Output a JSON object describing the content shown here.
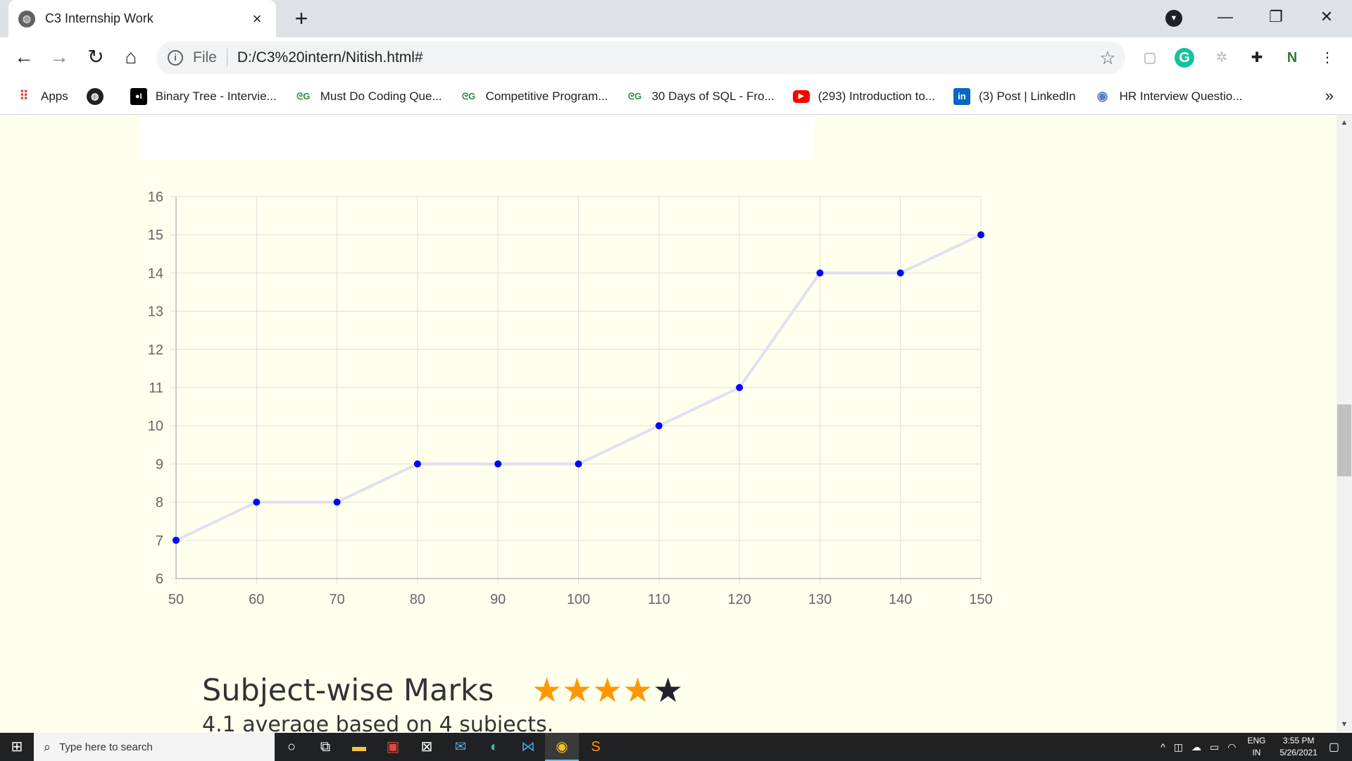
{
  "browser": {
    "tab_title": "C3 Internship Work",
    "tab_close": "×",
    "new_tab": "+",
    "url_scheme": "File",
    "url": "D:/C3%20intern/Nitish.html#",
    "window_controls": {
      "minimize": "—",
      "restore": "❐",
      "close": "✕"
    }
  },
  "bookmarks": {
    "items": [
      {
        "label": "Apps",
        "icon": "apps-grid-icon"
      },
      {
        "label": "",
        "icon": "globe-icon"
      },
      {
        "label": "Binary Tree - Intervie...",
        "icon": "medium-icon"
      },
      {
        "label": "Must Do Coding Que...",
        "icon": "gfg-icon"
      },
      {
        "label": "Competitive Program...",
        "icon": "gfg-icon"
      },
      {
        "label": "30 Days of SQL - Fro...",
        "icon": "gfg-icon"
      },
      {
        "label": "(293) Introduction to...",
        "icon": "youtube-icon"
      },
      {
        "label": "(3) Post | LinkedIn",
        "icon": "linkedin-icon"
      },
      {
        "label": "HR Interview Questio...",
        "icon": "web-icon"
      }
    ],
    "more": "»"
  },
  "chart_data": {
    "type": "line",
    "x": [
      50,
      60,
      70,
      80,
      90,
      100,
      110,
      120,
      130,
      140,
      150
    ],
    "series": [
      {
        "values": [
          7,
          8,
          8,
          9,
          9,
          9,
          10,
          11,
          14,
          14,
          15
        ]
      }
    ],
    "x_ticks": [
      "50",
      "60",
      "70",
      "80",
      "90",
      "100",
      "110",
      "120",
      "130",
      "140",
      "150"
    ],
    "y_ticks": [
      "6",
      "7",
      "8",
      "9",
      "10",
      "11",
      "12",
      "13",
      "14",
      "15",
      "16"
    ],
    "xlim": [
      50,
      150
    ],
    "ylim": [
      6,
      16
    ],
    "grid": true,
    "colors": {
      "line": "#e0e0f0",
      "point": "#0000ff",
      "grid": "#dddddd"
    }
  },
  "rating": {
    "title": "Subject-wise Marks",
    "stars_filled": 4,
    "stars_total": 5,
    "subtitle": "4.1 average based on 4 subjects.",
    "colors": {
      "on": "#ff9800",
      "off": "#212529"
    }
  },
  "taskbar": {
    "search_placeholder": "Type here to search",
    "lang_top": "ENG",
    "lang_bottom": "IN",
    "time": "3:55 PM",
    "date": "5/26/2021"
  }
}
